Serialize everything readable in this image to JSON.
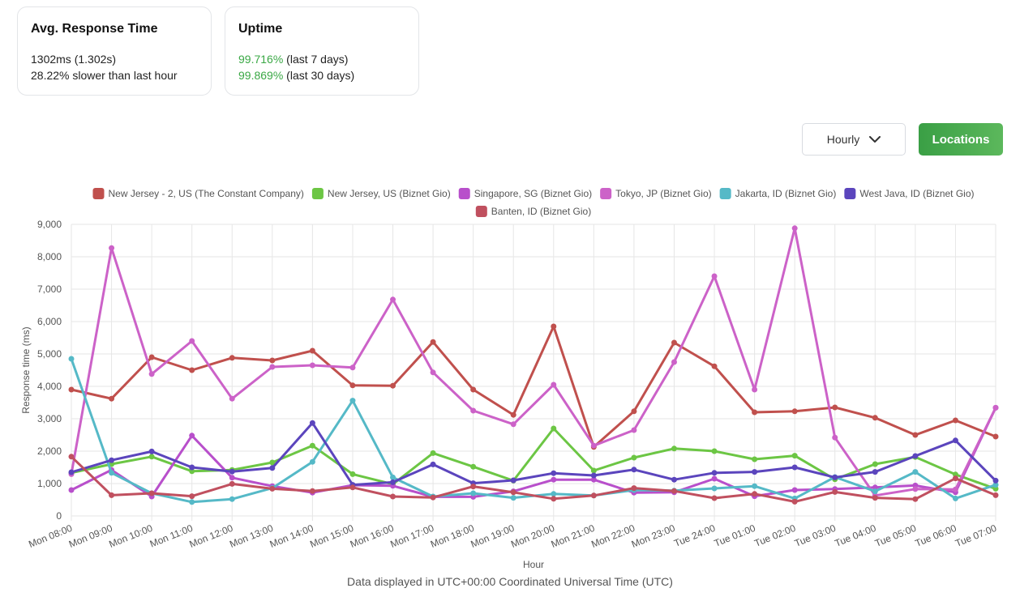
{
  "cards": {
    "response": {
      "title": "Avg. Response Time",
      "line1": "1302ms (1.302s)",
      "line2": "28.22% slower than last hour"
    },
    "uptime": {
      "title": "Uptime",
      "week_value": "99.716%",
      "week_label": " (last 7 days)",
      "month_value": "99.869%",
      "month_label": " (last 30 days)"
    }
  },
  "controls": {
    "interval_label": "Hourly",
    "locations_label": "Locations"
  },
  "footer": "Data displayed in UTC+00:00 Coordinated Universal Time (UTC)",
  "colors": {
    "accent_green": "#3aa845",
    "button_green": "#4caf50"
  },
  "chart_data": {
    "type": "line",
    "xlabel": "Hour",
    "ylabel": "Response time (ms)",
    "ylim": [
      0,
      9000
    ],
    "yticks": [
      0,
      1000,
      2000,
      3000,
      4000,
      5000,
      6000,
      7000,
      8000,
      9000
    ],
    "ytick_labels": [
      "0",
      "1,000",
      "2,000",
      "3,000",
      "4,000",
      "5,000",
      "6,000",
      "7,000",
      "8,000",
      "9,000"
    ],
    "grid": true,
    "legend_position": "top",
    "categories": [
      "Mon 08:00",
      "Mon 09:00",
      "Mon 10:00",
      "Mon 11:00",
      "Mon 12:00",
      "Mon 13:00",
      "Mon 14:00",
      "Mon 15:00",
      "Mon 16:00",
      "Mon 17:00",
      "Mon 18:00",
      "Mon 19:00",
      "Mon 20:00",
      "Mon 21:00",
      "Mon 22:00",
      "Mon 23:00",
      "Tue 24:00",
      "Tue 01:00",
      "Tue 02:00",
      "Tue 03:00",
      "Tue 04:00",
      "Tue 05:00",
      "Tue 06:00",
      "Tue 07:00"
    ],
    "series": [
      {
        "name": "New Jersey - 2, US (The Constant Company)",
        "color": "#c0504d",
        "values": [
          3900,
          3620,
          4900,
          4500,
          4880,
          4800,
          5100,
          4030,
          4020,
          5370,
          3900,
          3120,
          5850,
          2130,
          3230,
          5350,
          4620,
          3200,
          3230,
          3350,
          3030,
          2500,
          2950,
          2450
        ]
      },
      {
        "name": "New Jersey, US (Biznet Gio)",
        "color": "#6cc644",
        "values": [
          1330,
          1600,
          1830,
          1380,
          1420,
          1650,
          2170,
          1290,
          980,
          1940,
          1520,
          1090,
          2700,
          1400,
          1800,
          2080,
          2000,
          1750,
          1860,
          1130,
          1600,
          1820,
          1280,
          840
        ]
      },
      {
        "name": "Singapore, SG (Biznet Gio)",
        "color": "#b84fcb",
        "values": [
          800,
          1420,
          600,
          2480,
          1180,
          920,
          720,
          950,
          930,
          590,
          590,
          760,
          1120,
          1120,
          720,
          730,
          1150,
          610,
          800,
          830,
          880,
          940,
          730,
          3340
        ]
      },
      {
        "name": "Tokyo, JP (Biznet Gio)",
        "color": "#cc62c8",
        "values": [
          1290,
          8270,
          4380,
          5400,
          3620,
          4600,
          4650,
          4580,
          6680,
          4430,
          3250,
          2830,
          4050,
          2170,
          2650,
          4750,
          7400,
          3900,
          8880,
          2420,
          630,
          830,
          820,
          3340
        ]
      },
      {
        "name": "Jakarta, ID (Biznet Gio)",
        "color": "#55b9c7",
        "values": [
          4850,
          1330,
          700,
          430,
          520,
          860,
          1670,
          3560,
          1190,
          600,
          700,
          560,
          680,
          630,
          800,
          780,
          850,
          920,
          540,
          1200,
          760,
          1360,
          540,
          960
        ]
      },
      {
        "name": "West Java, ID (Biznet Gio)",
        "color": "#5b45bd",
        "values": [
          1350,
          1720,
          1990,
          1500,
          1370,
          1480,
          2870,
          960,
          1040,
          1590,
          1010,
          1100,
          1320,
          1250,
          1430,
          1120,
          1330,
          1360,
          1500,
          1190,
          1360,
          1850,
          2330,
          1090
        ]
      },
      {
        "name": "Banten, ID (Biznet Gio)",
        "color": "#c0505f",
        "values": [
          1830,
          640,
          700,
          610,
          990,
          840,
          770,
          880,
          600,
          570,
          910,
          730,
          530,
          630,
          860,
          770,
          550,
          680,
          440,
          740,
          560,
          520,
          1160,
          640
        ]
      }
    ]
  }
}
